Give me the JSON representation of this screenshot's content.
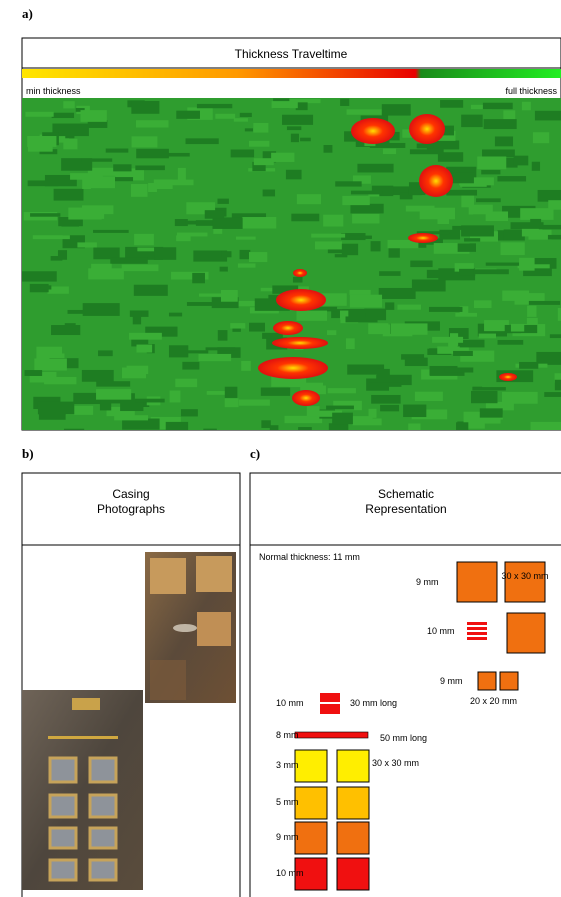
{
  "panel_a": {
    "label": "a)",
    "title": "Thickness Traveltime",
    "min_label": "min thickness",
    "max_label": "full thickness"
  },
  "panel_b": {
    "label": "b)",
    "title": [
      "Casing",
      "Photographs"
    ]
  },
  "panel_c": {
    "label": "c)",
    "title": [
      "Schematic",
      "Representation"
    ],
    "normal": "Normal thickness: 11 mm",
    "annotations": [
      "9 mm",
      "30 x 30 mm",
      "10 mm",
      "9 mm",
      "20 x 20 mm",
      "10 mm",
      "30 mm long",
      "8 mm",
      "50 mm long",
      "3 mm",
      "30 x 30 mm",
      "5 mm",
      "9 mm",
      "10 mm"
    ]
  }
}
